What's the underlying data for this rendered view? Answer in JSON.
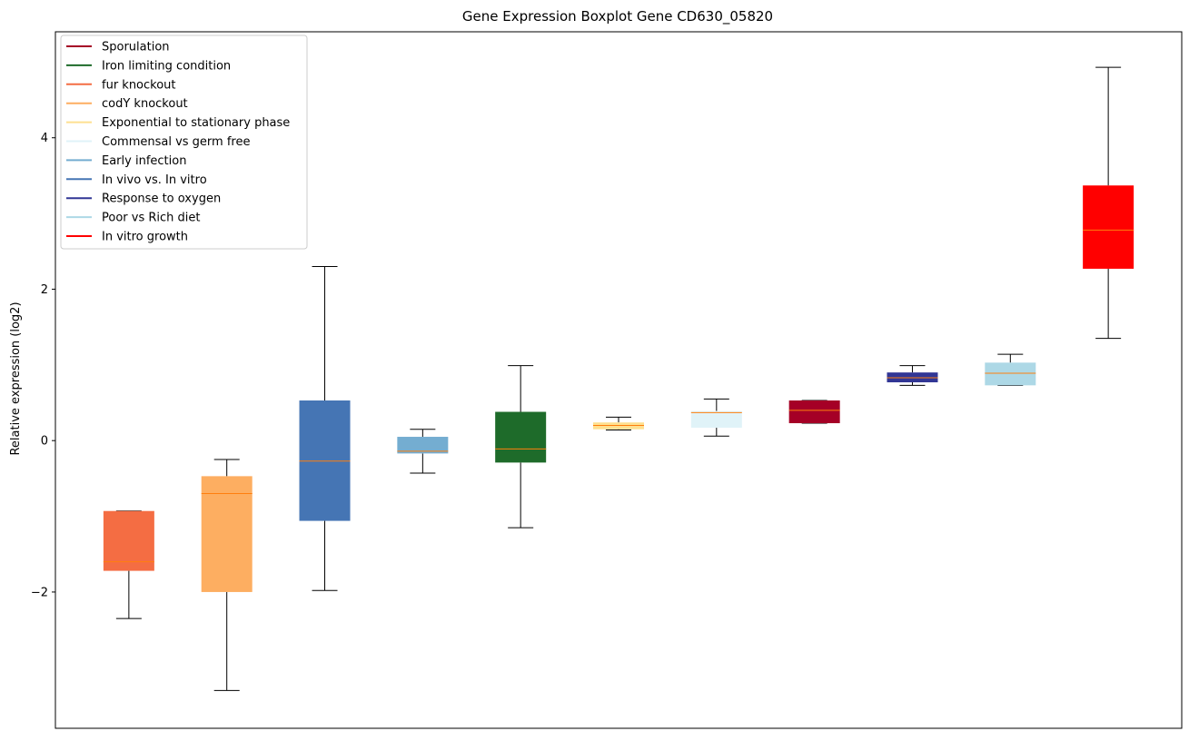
{
  "chart_data": {
    "type": "box",
    "title": "Gene Expression Boxplot Gene CD630_05820",
    "xlabel": "",
    "ylabel": "Relative expression (log2)",
    "ylim": [
      -3.8,
      5.4
    ],
    "yticks": [
      -2,
      0,
      2,
      4
    ],
    "ytick_labels": [
      "−2",
      "0",
      "2",
      "4"
    ],
    "grid": false,
    "legend_position": "upper-left",
    "legend": [
      {
        "label": "Sporulation",
        "color": "#a50026"
      },
      {
        "label": "Iron limiting condition",
        "color": "#1e6b2a"
      },
      {
        "label": "fur knockout",
        "color": "#f46d43"
      },
      {
        "label": "codY knockout",
        "color": "#fdae61"
      },
      {
        "label": "Exponential to stationary phase",
        "color": "#fee090"
      },
      {
        "label": "Commensal vs germ free",
        "color": "#e0f3f8"
      },
      {
        "label": "Early infection",
        "color": "#74add1"
      },
      {
        "label": "In vivo vs. In vitro",
        "color": "#4575b4"
      },
      {
        "label": "Response to oxygen",
        "color": "#313695"
      },
      {
        "label": "Poor vs Rich diet",
        "color": "#add8e6"
      },
      {
        "label": "In vitro growth",
        "color": "#ff0000"
      }
    ],
    "median_color": "#ff7f0e",
    "boxes": [
      {
        "series": "fur knockout",
        "color": "#f46d43",
        "whisker_low": -2.35,
        "q1": -1.72,
        "median": -1.6,
        "q3": -0.93,
        "whisker_high": -0.93
      },
      {
        "series": "codY knockout",
        "color": "#fdae61",
        "whisker_low": -3.3,
        "q1": -2.0,
        "median": -0.7,
        "q3": -0.47,
        "whisker_high": -0.25
      },
      {
        "series": "In vivo vs. In vitro",
        "color": "#4575b4",
        "whisker_low": -1.98,
        "q1": -1.06,
        "median": -0.27,
        "q3": 0.53,
        "whisker_high": 2.3
      },
      {
        "series": "Early infection",
        "color": "#74add1",
        "whisker_low": -0.43,
        "q1": -0.17,
        "median": -0.14,
        "q3": 0.05,
        "whisker_high": 0.15
      },
      {
        "series": "Iron limiting condition",
        "color": "#1e6b2a",
        "whisker_low": -1.15,
        "q1": -0.29,
        "median": -0.11,
        "q3": 0.38,
        "whisker_high": 0.99
      },
      {
        "series": "Exponential to stationary phase",
        "color": "#fee090",
        "whisker_low": 0.14,
        "q1": 0.15,
        "median": 0.2,
        "q3": 0.24,
        "whisker_high": 0.31
      },
      {
        "series": "Commensal vs germ free",
        "color": "#e0f3f8",
        "whisker_low": 0.06,
        "q1": 0.17,
        "median": 0.37,
        "q3": 0.39,
        "whisker_high": 0.55
      },
      {
        "series": "Sporulation",
        "color": "#a50026",
        "whisker_low": 0.23,
        "q1": 0.23,
        "median": 0.4,
        "q3": 0.53,
        "whisker_high": 0.53
      },
      {
        "series": "Response to oxygen",
        "color": "#313695",
        "whisker_low": 0.73,
        "q1": 0.77,
        "median": 0.83,
        "q3": 0.9,
        "whisker_high": 0.99
      },
      {
        "series": "Poor vs Rich diet",
        "color": "#add8e6",
        "whisker_low": 0.73,
        "q1": 0.73,
        "median": 0.89,
        "q3": 1.03,
        "whisker_high": 1.14
      },
      {
        "series": "In vitro growth",
        "color": "#ff0000",
        "whisker_low": 1.35,
        "q1": 2.27,
        "median": 2.78,
        "q3": 3.37,
        "whisker_high": 4.93
      }
    ]
  }
}
